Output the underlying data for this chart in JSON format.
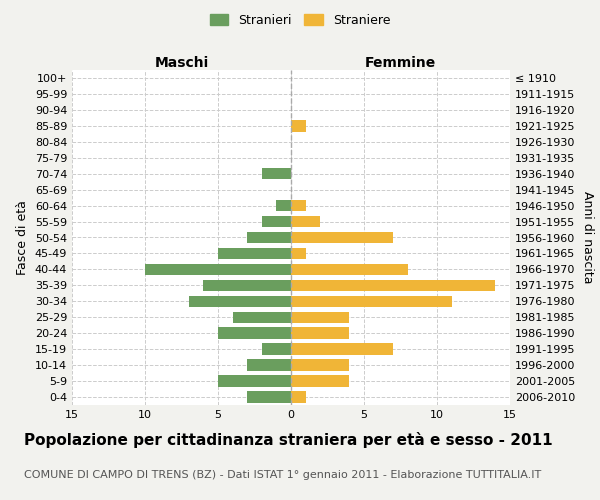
{
  "age_groups": [
    "100+",
    "95-99",
    "90-94",
    "85-89",
    "80-84",
    "75-79",
    "70-74",
    "65-69",
    "60-64",
    "55-59",
    "50-54",
    "45-49",
    "40-44",
    "35-39",
    "30-34",
    "25-29",
    "20-24",
    "15-19",
    "10-14",
    "5-9",
    "0-4"
  ],
  "birth_years": [
    "≤ 1910",
    "1911-1915",
    "1916-1920",
    "1921-1925",
    "1926-1930",
    "1931-1935",
    "1936-1940",
    "1941-1945",
    "1946-1950",
    "1951-1955",
    "1956-1960",
    "1961-1965",
    "1966-1970",
    "1971-1975",
    "1976-1980",
    "1981-1985",
    "1986-1990",
    "1991-1995",
    "1996-2000",
    "2001-2005",
    "2006-2010"
  ],
  "maschi": [
    0,
    0,
    0,
    0,
    0,
    0,
    2,
    0,
    1,
    2,
    3,
    5,
    10,
    6,
    7,
    4,
    5,
    2,
    3,
    5,
    3
  ],
  "femmine": [
    0,
    0,
    0,
    1,
    0,
    0,
    0,
    0,
    1,
    2,
    7,
    1,
    8,
    14,
    11,
    4,
    4,
    7,
    4,
    4,
    1
  ],
  "color_maschi": "#6a9e5e",
  "color_femmine": "#f0b537",
  "xlim": 15,
  "title": "Popolazione per cittadinanza straniera per età e sesso - 2011",
  "subtitle": "COMUNE DI CAMPO DI TRENS (BZ) - Dati ISTAT 1° gennaio 2011 - Elaborazione TUTTITALIA.IT",
  "ylabel_left": "Fasce di età",
  "ylabel_right": "Anni di nascita",
  "legend_maschi": "Stranieri",
  "legend_femmine": "Straniere",
  "header_left": "Maschi",
  "header_right": "Femmine",
  "bg_color": "#f2f2ee",
  "plot_bg_color": "#ffffff",
  "grid_color": "#cccccc",
  "title_fontsize": 11,
  "subtitle_fontsize": 8,
  "axis_label_fontsize": 9,
  "tick_fontsize": 8
}
